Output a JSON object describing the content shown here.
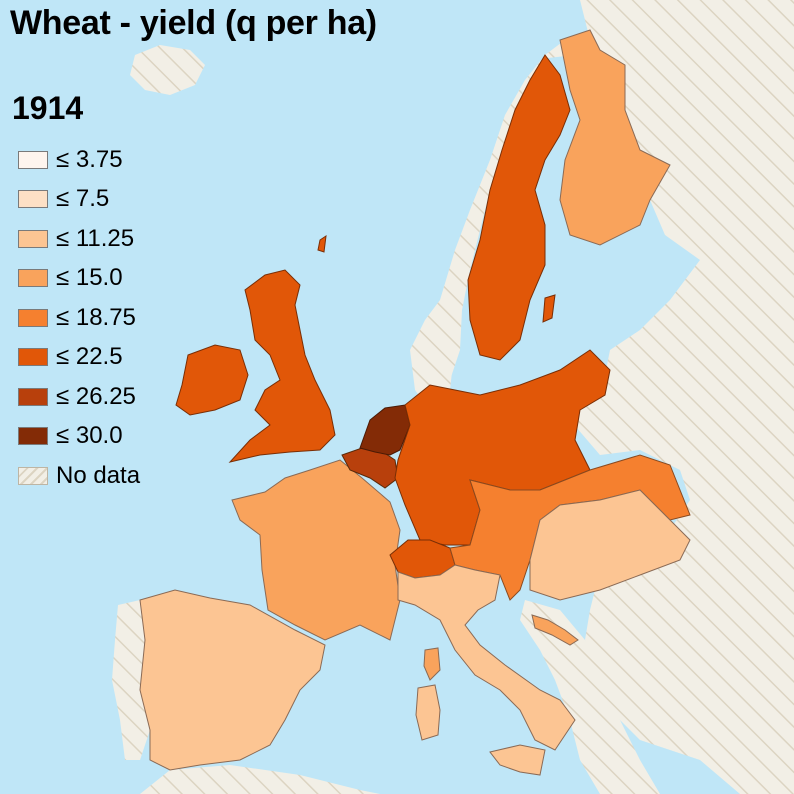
{
  "map": {
    "title": "Wheat - yield (q per ha)",
    "year": "1914",
    "legend": [
      {
        "label": "≤ 3.75",
        "color": "#fef5ee"
      },
      {
        "label": "≤ 7.5",
        "color": "#fde0c5"
      },
      {
        "label": "≤ 11.25",
        "color": "#fcc593"
      },
      {
        "label": "≤ 15.0",
        "color": "#f9a35c"
      },
      {
        "label": "≤ 18.75",
        "color": "#f5802f"
      },
      {
        "label": "≤ 22.5",
        "color": "#e15708"
      },
      {
        "label": "≤ 26.25",
        "color": "#b8400c"
      },
      {
        "label": "≤ 30.0",
        "color": "#832b06"
      },
      {
        "label": "No data",
        "color": "hatched"
      }
    ],
    "colors": {
      "sea": "#bfe6f7",
      "no_data_land": "#f2efe6",
      "hatch": "#dcd4c2"
    },
    "regions": [
      {
        "id": "netherlands",
        "class": "≤ 30.0"
      },
      {
        "id": "belgium",
        "class": "≤ 26.25"
      },
      {
        "id": "switzerland",
        "class": "≤ 22.5"
      },
      {
        "id": "germany",
        "class": "≤ 22.5"
      },
      {
        "id": "united-kingdom",
        "class": "≤ 22.5"
      },
      {
        "id": "ireland",
        "class": "≤ 22.5"
      },
      {
        "id": "sweden",
        "class": "≤ 22.5"
      },
      {
        "id": "austria",
        "class": "≤ 18.75"
      },
      {
        "id": "france",
        "class": "≤ 15.0"
      },
      {
        "id": "finland",
        "class": "≤ 15.0"
      },
      {
        "id": "hungary",
        "class": "≤ 11.25"
      },
      {
        "id": "italy",
        "class": "≤ 11.25"
      },
      {
        "id": "spain",
        "class": "≤ 11.25"
      },
      {
        "id": "dalmatia",
        "class": "≤ 15.0"
      }
    ]
  }
}
